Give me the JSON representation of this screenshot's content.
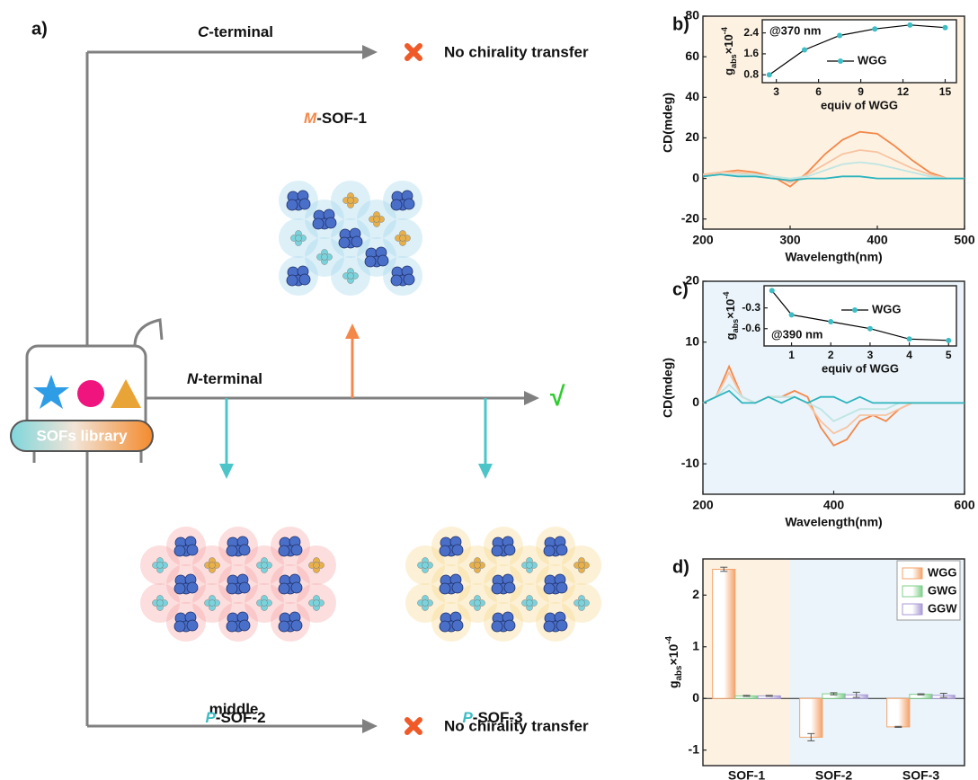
{
  "diagram": {
    "panel_label": "a)",
    "c_terminal": {
      "italic": "C",
      "rest": "-terminal"
    },
    "n_terminal": {
      "italic": "N",
      "rest": "-terminal"
    },
    "middle": "middle",
    "no_transfer_top": "No chirality transfer",
    "no_transfer_bottom": "No chirality transfer",
    "check": "√",
    "library": "SOFs library",
    "sof1": {
      "italic": "M",
      "rest": "-SOF-1"
    },
    "sof2": {
      "italic": "P",
      "rest": "-SOF-2"
    },
    "sof3": {
      "italic": "P",
      "rest": "-SOF-3"
    }
  },
  "chart_data": [
    {
      "type": "line",
      "panel_label": "b)",
      "x_label": "Wavelength(nm)",
      "y_label": "CD(mdeg)",
      "background": "#fdf2e2",
      "xlim": [
        200,
        500
      ],
      "xticks": [
        200,
        300,
        400,
        500
      ],
      "ylim": [
        -25,
        80
      ],
      "yticks": [
        -20,
        0,
        20,
        40,
        60,
        80
      ],
      "x": [
        200,
        220,
        240,
        260,
        280,
        300,
        320,
        340,
        360,
        380,
        400,
        420,
        440,
        460,
        480,
        500
      ],
      "series": [
        {
          "color": "#f4884a",
          "values": [
            2,
            3,
            4,
            3,
            1,
            -4,
            3,
            12,
            19,
            23,
            22,
            16,
            9,
            3,
            0,
            0
          ]
        },
        {
          "color": "#f8c3a1",
          "values": [
            2,
            3,
            3,
            2,
            1,
            -2,
            2,
            7,
            12,
            14,
            13,
            9,
            5,
            2,
            0,
            0
          ]
        },
        {
          "color": "#bfe5e3",
          "values": [
            1,
            2,
            2,
            2,
            1,
            0,
            1,
            4,
            7,
            8,
            7,
            5,
            3,
            1,
            0,
            0
          ]
        },
        {
          "color": "#2cb3bd",
          "values": [
            1,
            2,
            1,
            1,
            0,
            -1,
            0,
            0,
            1,
            1,
            0,
            0,
            0,
            0,
            0,
            0
          ]
        }
      ],
      "inset": {
        "type": "line",
        "annotation": "@370 nm",
        "x_label": "equiv of WGG",
        "y_label": {
          "base": "g",
          "sub": "abs",
          "mid": "×10",
          "sup": "-4"
        },
        "xlim": [
          2,
          15.8
        ],
        "xticks": [
          3,
          6,
          9,
          12,
          15
        ],
        "ylim": [
          0.5,
          2.9
        ],
        "yticks": [
          0.8,
          1.6,
          2.4
        ],
        "x": [
          2.5,
          5,
          7.5,
          10,
          12.5,
          15
        ],
        "line_color": "#000000",
        "series": [
          {
            "name": "WGG",
            "color": "#3dbdc4",
            "values": [
              0.8,
              1.75,
              2.3,
              2.55,
              2.7,
              2.6
            ]
          }
        ]
      }
    },
    {
      "type": "line",
      "panel_label": "c)",
      "x_label": "Wavelength(nm)",
      "y_label": "CD(mdeg)",
      "background": "#eaf4fa",
      "xlim": [
        200,
        600
      ],
      "xticks": [
        200,
        400,
        600
      ],
      "ylim": [
        -15,
        20
      ],
      "yticks": [
        -10,
        0,
        10,
        20
      ],
      "x": [
        200,
        220,
        240,
        260,
        280,
        300,
        320,
        340,
        360,
        380,
        400,
        420,
        440,
        460,
        480,
        500,
        520,
        540,
        560,
        580,
        600
      ],
      "series": [
        {
          "color": "#f4884a",
          "values": [
            0,
            1,
            6,
            1,
            0,
            1,
            1,
            2,
            1,
            -4,
            -7,
            -6,
            -3,
            -2,
            -3,
            -1,
            0,
            0,
            0,
            0,
            0
          ]
        },
        {
          "color": "#f8c3a1",
          "values": [
            0,
            1,
            5,
            1,
            0,
            1,
            1,
            1,
            0,
            -3,
            -5,
            -4,
            -2,
            -2,
            -2,
            -1,
            0,
            0,
            0,
            0,
            0
          ]
        },
        {
          "color": "#bfe5e3",
          "values": [
            0,
            1,
            3,
            1,
            0,
            1,
            1,
            1,
            0,
            -1,
            -3,
            -2,
            -1,
            -1,
            -1,
            0,
            0,
            0,
            0,
            0,
            0
          ]
        },
        {
          "color": "#2cb3bd",
          "values": [
            0,
            1,
            2,
            0,
            0,
            1,
            0,
            1,
            0,
            1,
            1,
            0,
            1,
            0,
            0,
            0,
            0,
            0,
            0,
            0,
            0
          ]
        }
      ],
      "inset": {
        "type": "line",
        "annotation": "@390 nm",
        "x_label": "equiv of WGG",
        "y_label": {
          "base": "g",
          "sub": "abs",
          "mid": "×10",
          "sup": "-4"
        },
        "xlim": [
          0.3,
          5.2
        ],
        "xticks": [
          1,
          2,
          3,
          4,
          5
        ],
        "ylim": [
          -0.85,
          0.02
        ],
        "yticks": [
          -0.3,
          -0.6
        ],
        "x": [
          0.5,
          1,
          2,
          3,
          4,
          5
        ],
        "line_color": "#000000",
        "series": [
          {
            "name": "WGG",
            "color": "#3dbdc4",
            "values": [
              -0.05,
              -0.4,
              -0.5,
              -0.6,
              -0.75,
              -0.77
            ]
          }
        ]
      }
    },
    {
      "type": "bar",
      "panel_label": "d)",
      "y_label": {
        "base": "g",
        "sub": "abs",
        "mid": "×10",
        "sup": "-4"
      },
      "categories": [
        "SOF-1",
        "SOF-2",
        "SOF-3"
      ],
      "region_colors": [
        "#fdf2e2",
        "#eaf4fa",
        "#eaf4fa"
      ],
      "ylim": [
        -1.3,
        2.7
      ],
      "yticks": [
        -1,
        0,
        1,
        2
      ],
      "series": [
        {
          "name": "WGG",
          "color": "#f4a36b",
          "values": [
            2.5,
            -0.75,
            -0.55
          ],
          "errors": [
            0.04,
            0.07,
            0.01
          ]
        },
        {
          "name": "GWG",
          "color": "#7fcf8a",
          "values": [
            0.05,
            0.09,
            0.08
          ],
          "errors": [
            0.01,
            0.02,
            0.01
          ]
        },
        {
          "name": "GGW",
          "color": "#a99ad6",
          "values": [
            0.05,
            0.07,
            0.06
          ],
          "errors": [
            0.01,
            0.05,
            0.04
          ]
        }
      ]
    }
  ]
}
